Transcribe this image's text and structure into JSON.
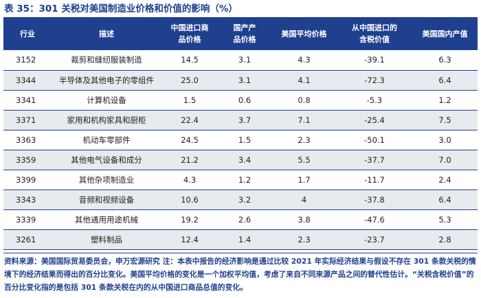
{
  "title": "表 35：301 关税对美国制造业价格和价值的影响（%）",
  "headers": [
    "行业",
    "描述",
    "中国进口商\n品价格",
    "国产产\n品价格",
    "美国平均价格",
    "从中国进口的\n含税价值",
    "美国国内产值"
  ],
  "rows": [
    [
      "3152",
      "裁剪和缝纫服装制造",
      "14.5",
      "3.1",
      "4.3",
      "-39.1",
      "6.3"
    ],
    [
      "3344",
      "半导体及其他电子的零组件",
      "25.0",
      "3.1",
      "4.1",
      "-72.3",
      "6.4"
    ],
    [
      "3341",
      "计算机设备",
      "1.5",
      "0.6",
      "0.8",
      "-5.3",
      "1.2"
    ],
    [
      "3371",
      "家用和机构家具和厨柜",
      "22.4",
      "3.7",
      "7.1",
      "-25.4",
      "7.5"
    ],
    [
      "3363",
      "机动车零部件",
      "24.5",
      "1.5",
      "2.3",
      "-50.1",
      "3.0"
    ],
    [
      "3359",
      "其他电气设备和成分",
      "21.2",
      "3.4",
      "5.5",
      "-37.7",
      "7.0"
    ],
    [
      "3399",
      "其他杂项制造业",
      "4.3",
      "1.2",
      "1.7",
      "-11.7",
      "2.4"
    ],
    [
      "3343",
      "音频和视频设备",
      "10.6",
      "3.2",
      "4",
      "-37.8",
      "6.4"
    ],
    [
      "3339",
      "其他通用用途机械",
      "19.2",
      "2.6",
      "3.8",
      "-47.6",
      "5.3"
    ],
    [
      "3261",
      "塑料制品",
      "12.4",
      "1.4",
      "2.3",
      "-23.7",
      "2.8"
    ]
  ],
  "source_note": "资料来源：美国国际贸易委员会，申万宏源研究 注：本表中报告的经济影响是通过比较 2021 年实际经济结果与假设不存在 301 条款关税的情境下的经济结果而得出的百分比变化。美国平均价格的变化是一个加权平均值，考虑了来自不同来源产品之间的替代性估计。“关税含税价值”的百分比变化指的是包括 301 条款关税在内的从中国进口商品总值的变化。",
  "colors": {
    "accent": "#1f3f8f",
    "stripe": "#e7eaef"
  }
}
